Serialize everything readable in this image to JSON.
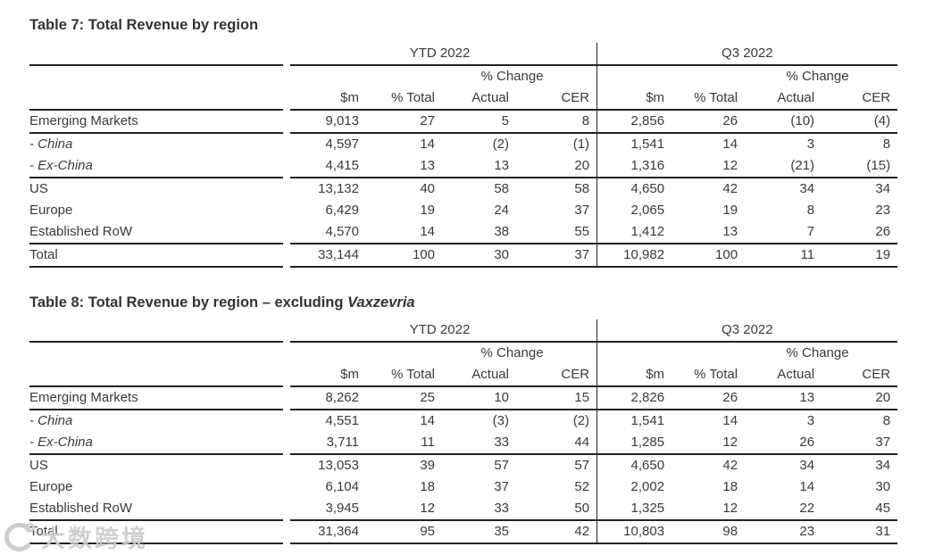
{
  "colors": {
    "text": "#3a3a3a",
    "line": "#222222",
    "watermark": "#cccccc"
  },
  "watermark": {
    "text": "大数跨境",
    "logo_icon": "circular-c-with-degree-mark"
  },
  "tables": [
    {
      "id": "table-7",
      "title_text": "Table 7: Total Revenue by region",
      "title_italic": "",
      "group_headers": [
        "YTD 2022",
        "Q3 2022"
      ],
      "pct_change_label": "% Change",
      "col_headers": [
        "$m",
        "% Total",
        "Actual",
        "CER"
      ],
      "rows": [
        {
          "label": "Emerging Markets",
          "style": "normal",
          "rule_below": true,
          "ytd": [
            "9,013",
            "27",
            "5",
            "8"
          ],
          "q3": [
            "2,856",
            "26",
            "(10)",
            "(4)"
          ]
        },
        {
          "label": "- China",
          "style": "italic",
          "rule_below": false,
          "ytd": [
            "4,597",
            "14",
            "(2)",
            "(1)"
          ],
          "q3": [
            "1,541",
            "14",
            "3",
            "8"
          ]
        },
        {
          "label": "- Ex-China",
          "style": "italic",
          "rule_below": true,
          "ytd": [
            "4,415",
            "13",
            "13",
            "20"
          ],
          "q3": [
            "1,316",
            "12",
            "(21)",
            "(15)"
          ]
        },
        {
          "label": "US",
          "style": "normal",
          "rule_below": false,
          "ytd": [
            "13,132",
            "40",
            "58",
            "58"
          ],
          "q3": [
            "4,650",
            "42",
            "34",
            "34"
          ]
        },
        {
          "label": "Europe",
          "style": "normal",
          "rule_below": false,
          "ytd": [
            "6,429",
            "19",
            "24",
            "37"
          ],
          "q3": [
            "2,065",
            "19",
            "8",
            "23"
          ]
        },
        {
          "label": "Established RoW",
          "style": "normal",
          "rule_below": true,
          "ytd": [
            "4,570",
            "14",
            "38",
            "55"
          ],
          "q3": [
            "1,412",
            "13",
            "7",
            "26"
          ]
        },
        {
          "label": "Total",
          "style": "bold",
          "rule_below": true,
          "ytd": [
            "33,144",
            "100",
            "30",
            "37"
          ],
          "q3": [
            "10,982",
            "100",
            "11",
            "19"
          ]
        }
      ]
    },
    {
      "id": "table-8",
      "title_text": "Table 8: Total Revenue by region – excluding ",
      "title_italic": "Vaxzevria",
      "group_headers": [
        "YTD 2022",
        "Q3 2022"
      ],
      "pct_change_label": "% Change",
      "col_headers": [
        "$m",
        "% Total",
        "Actual",
        "CER"
      ],
      "rows": [
        {
          "label": "Emerging Markets",
          "style": "normal",
          "rule_below": true,
          "ytd": [
            "8,262",
            "25",
            "10",
            "15"
          ],
          "q3": [
            "2,826",
            "26",
            "13",
            "20"
          ]
        },
        {
          "label": "- China",
          "style": "italic",
          "rule_below": false,
          "ytd": [
            "4,551",
            "14",
            "(3)",
            "(2)"
          ],
          "q3": [
            "1,541",
            "14",
            "3",
            "8"
          ]
        },
        {
          "label": "- Ex-China",
          "style": "italic",
          "rule_below": true,
          "ytd": [
            "3,711",
            "11",
            "33",
            "44"
          ],
          "q3": [
            "1,285",
            "12",
            "26",
            "37"
          ]
        },
        {
          "label": "US",
          "style": "normal",
          "rule_below": false,
          "ytd": [
            "13,053",
            "39",
            "57",
            "57"
          ],
          "q3": [
            "4,650",
            "42",
            "34",
            "34"
          ]
        },
        {
          "label": "Europe",
          "style": "normal",
          "rule_below": false,
          "ytd": [
            "6,104",
            "18",
            "37",
            "52"
          ],
          "q3": [
            "2,002",
            "18",
            "14",
            "30"
          ]
        },
        {
          "label": "Established RoW",
          "style": "normal",
          "rule_below": true,
          "ytd": [
            "3,945",
            "12",
            "33",
            "50"
          ],
          "q3": [
            "1,325",
            "12",
            "22",
            "45"
          ]
        },
        {
          "label": "Total",
          "style": "bold",
          "rule_below": true,
          "ytd": [
            "31,364",
            "95",
            "35",
            "42"
          ],
          "q3": [
            "10,803",
            "98",
            "23",
            "31"
          ]
        }
      ]
    }
  ]
}
